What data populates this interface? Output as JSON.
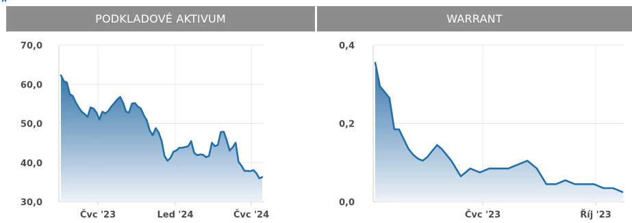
{
  "header": {
    "left_title": "PODKLADOVÉ AKTIVUM",
    "right_title": "WARRANT"
  },
  "colors": {
    "line": "#1f6fa8",
    "fill_top": "#2d6fa6",
    "fill_bottom": "#eef3f8",
    "grid": "#e8e8e8",
    "axis": "#cfcfcf",
    "header_bg": "#8d8d8d"
  },
  "chart_data": [
    {
      "type": "area",
      "title": "PODKLADOVÉ AKTIVUM",
      "ylim": [
        30,
        70
      ],
      "y_ticks": [
        {
          "value": 30,
          "label": "30,0"
        },
        {
          "value": 40,
          "label": "40,0"
        },
        {
          "value": 50,
          "label": "50,0"
        },
        {
          "value": 60,
          "label": "60,0"
        },
        {
          "value": 70,
          "label": "70,0"
        }
      ],
      "x_ticks": [
        "Čvc '23",
        "Led '24",
        "Čvc '24"
      ],
      "grid": true,
      "series": [
        {
          "values": [
            62.3,
            60.8,
            60.5,
            57.5,
            57.0,
            55.4,
            54.1,
            53.0,
            52.4,
            51.7,
            54.1,
            53.8,
            52.8,
            51.0,
            53.0,
            52.6,
            53.2,
            54.3,
            55.2,
            56.1,
            56.8,
            55.3,
            53.0,
            52.8,
            55.1,
            55.2,
            54.3,
            53.8,
            52.1,
            50.8,
            48.2,
            47.0,
            48.8,
            47.7,
            45.6,
            41.7,
            40.5,
            41.2,
            42.8,
            43.1,
            43.8,
            43.8,
            44.0,
            44.2,
            45.5,
            42.5,
            41.9,
            42.1,
            42.0,
            41.4,
            41.7,
            45.1,
            44.2,
            44.5,
            47.8,
            47.9,
            45.7,
            43.1,
            43.9,
            45.1,
            40.2,
            39.2,
            37.9,
            37.9,
            37.8,
            38.1,
            37.3,
            36.0,
            36.3
          ]
        }
      ]
    },
    {
      "type": "area",
      "title": "WARRANT",
      "ylim": [
        0,
        0.4
      ],
      "y_ticks": [
        {
          "value": 0,
          "label": "0,0"
        },
        {
          "value": 0.2,
          "label": "0,2"
        },
        {
          "value": 0.4,
          "label": "0,4"
        }
      ],
      "x_ticks": [
        "Čvc '23",
        "Říj '23"
      ],
      "grid": true,
      "series": [
        {
          "values": [
            0.355,
            0.295,
            0.28,
            0.265,
            0.185,
            0.185,
            0.16,
            0.135,
            0.12,
            0.11,
            0.105,
            0.115,
            0.13,
            0.145,
            0.135,
            0.12,
            0.105,
            0.085,
            0.065,
            0.075,
            0.085,
            0.08,
            0.075,
            0.08,
            0.085,
            0.085,
            0.085,
            0.085,
            0.085,
            0.09,
            0.095,
            0.1,
            0.105,
            0.095,
            0.085,
            0.065,
            0.045,
            0.045,
            0.045,
            0.05,
            0.055,
            0.05,
            0.045,
            0.045,
            0.045,
            0.045,
            0.045,
            0.04,
            0.035,
            0.035,
            0.035,
            0.03,
            0.025
          ]
        }
      ]
    }
  ]
}
